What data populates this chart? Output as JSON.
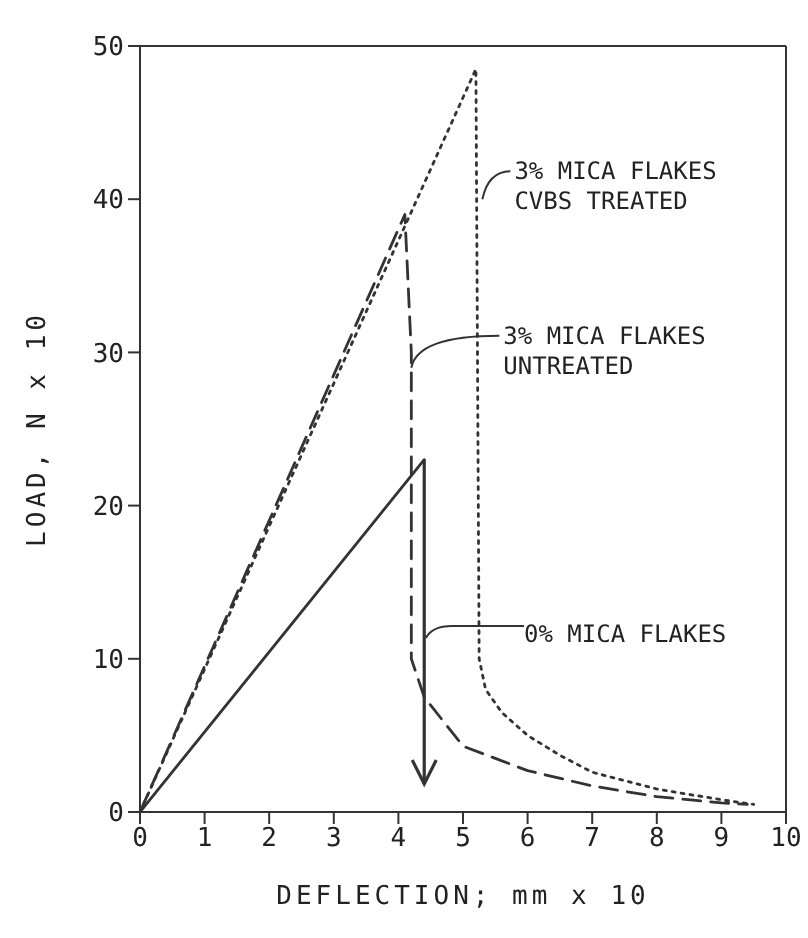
{
  "chart_data": {
    "type": "line",
    "xlabel": "DEFLECTION; mm x 10",
    "ylabel": "LOAD, N x 10",
    "xlim": [
      0,
      10
    ],
    "xticks": [
      0,
      1,
      2,
      3,
      4,
      5,
      6,
      7,
      8,
      9,
      10
    ],
    "ylim": [
      0,
      50
    ],
    "yticks": [
      0,
      10,
      20,
      30,
      40,
      50
    ],
    "marker": "none",
    "series": [
      {
        "color": "#333333",
        "line_style": "dotted",
        "x": [
          0,
          5.2,
          5.25,
          5.35,
          5.6,
          6,
          6.5,
          7,
          8,
          9,
          9.5
        ],
        "values": [
          0,
          48.5,
          10,
          8,
          6.5,
          5,
          3.7,
          2.6,
          1.5,
          0.8,
          0.5
        ]
      },
      {
        "color": "#333333",
        "line_style": "dashed",
        "x": [
          0,
          4.1,
          4.2,
          4.2,
          4.4,
          5,
          6,
          7,
          8,
          9,
          9.4
        ],
        "values": [
          0,
          39,
          30,
          10,
          7.5,
          4.3,
          2.7,
          1.7,
          1,
          0.6,
          0.5
        ]
      },
      {
        "color": "#333333",
        "line_style": "solid",
        "x": [
          0,
          4.4
        ],
        "values": [
          0,
          23
        ]
      }
    ],
    "annotations": [
      {
        "text": "3% MICA FLAKES\nCVBS TREATED",
        "x": 5.3,
        "y": 40
      },
      {
        "text": "3% MICA FLAKES\nUNTREATED",
        "x": 4.2,
        "y": 29
      },
      "0% MICA FLAKES"
    ]
  }
}
